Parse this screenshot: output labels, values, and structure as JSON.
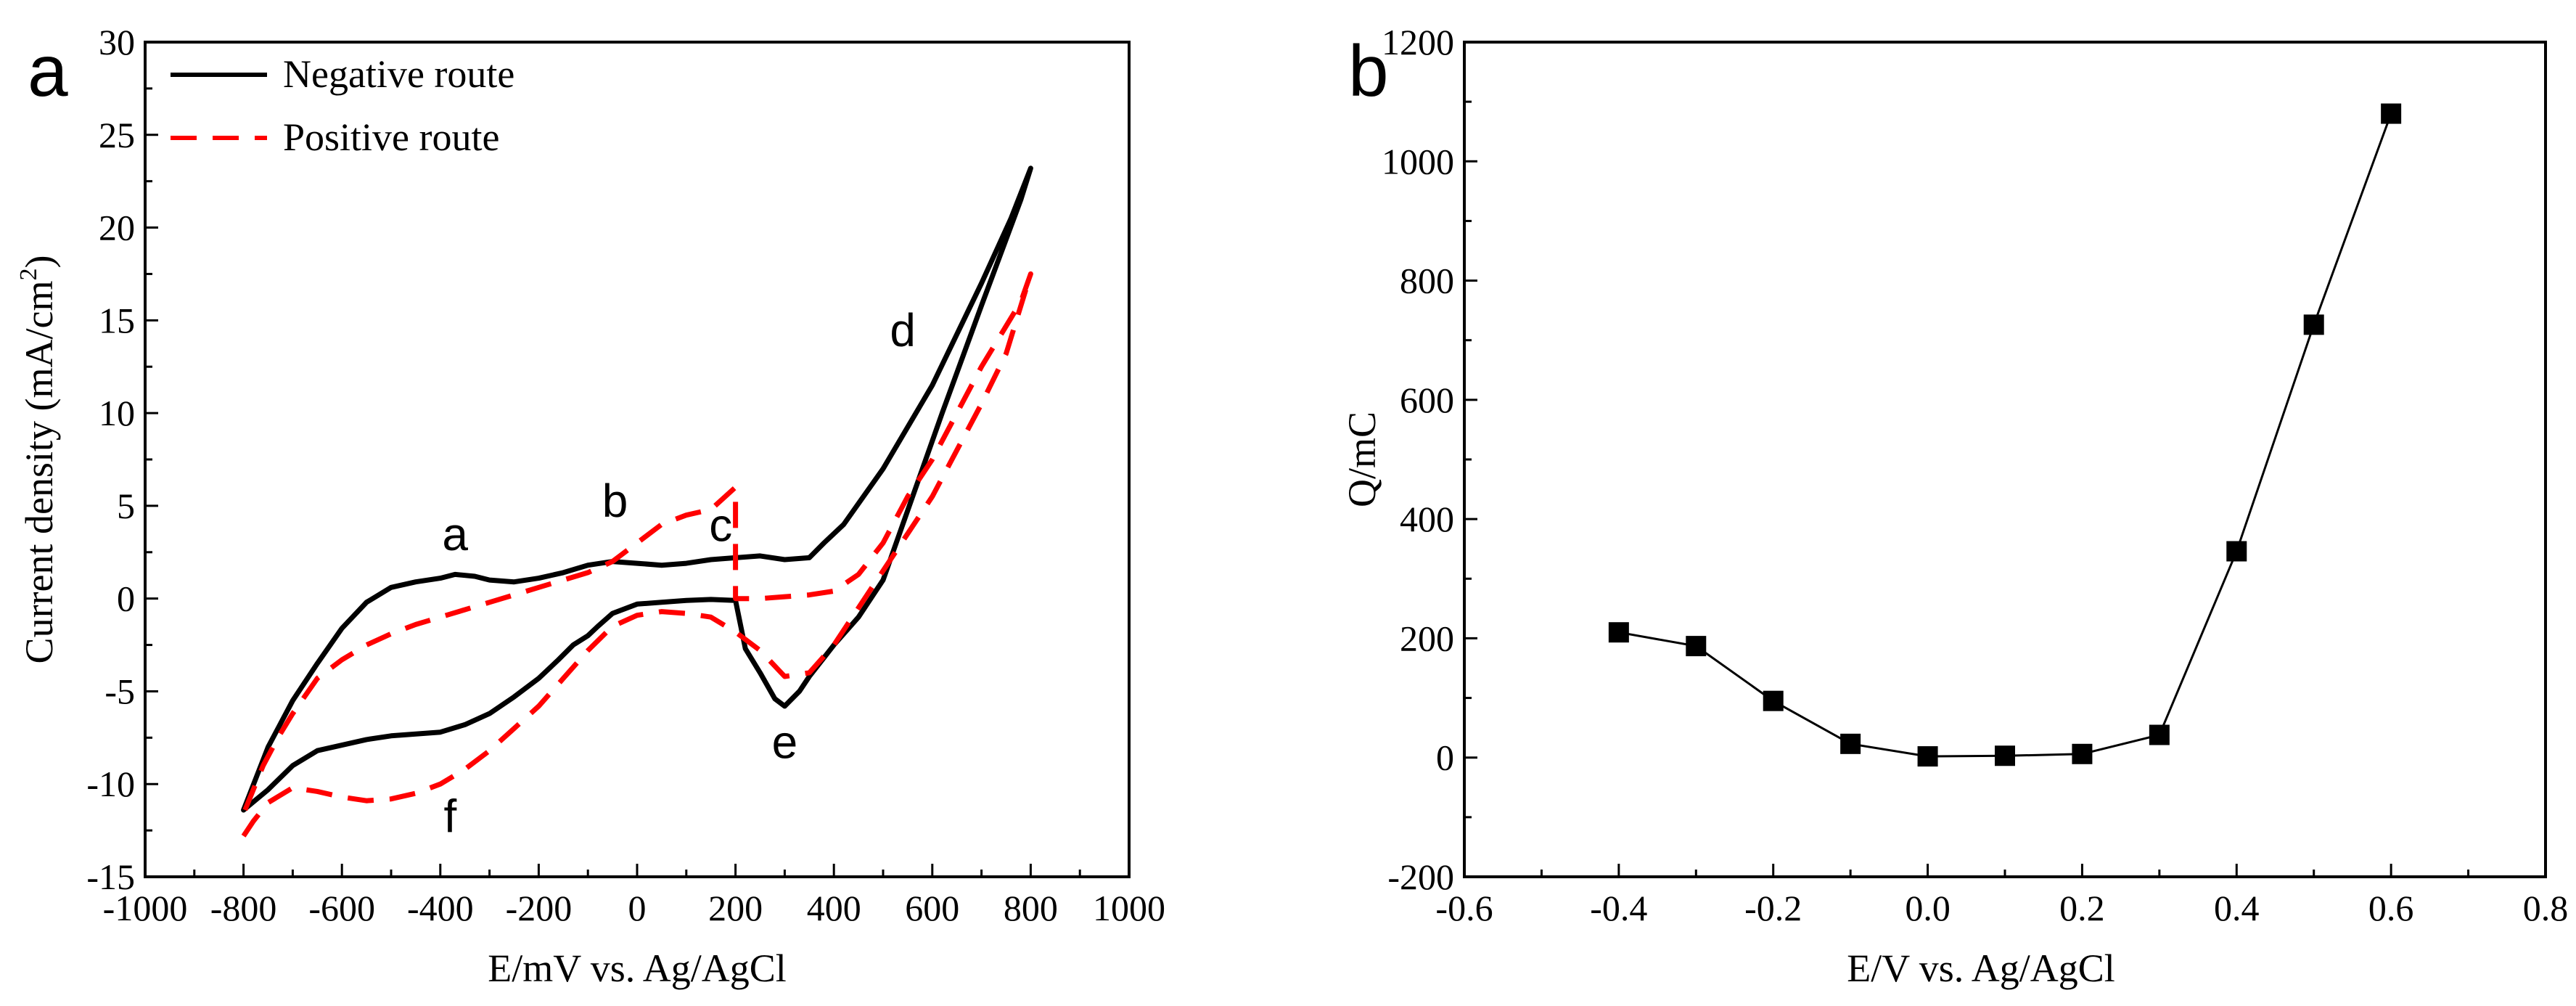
{
  "chart_data": [
    {
      "panel": "a",
      "type": "line",
      "title": "",
      "xlabel": "E/mV vs. Ag/AgCl",
      "ylabel_main": "Current density (mA/cm",
      "ylabel_sup": "2",
      "ylabel_end": ")",
      "xlim": [
        -1000,
        1000
      ],
      "ylim": [
        -15,
        30
      ],
      "xticks": [
        -1000,
        -800,
        -600,
        -400,
        -200,
        0,
        200,
        400,
        600,
        800,
        1000
      ],
      "yticks": [
        -15,
        -10,
        -5,
        0,
        5,
        10,
        15,
        20,
        25,
        30
      ],
      "grid": false,
      "legend_position": "top-left",
      "series": [
        {
          "name": "Negative route",
          "color": "#000000",
          "style": "solid",
          "points": [
            [
              -800,
              -11.4
            ],
            [
              -750,
              -8.0
            ],
            [
              -700,
              -5.5
            ],
            [
              -650,
              -3.5
            ],
            [
              -600,
              -1.6
            ],
            [
              -550,
              -0.2
            ],
            [
              -500,
              0.6
            ],
            [
              -450,
              0.9
            ],
            [
              -400,
              1.1
            ],
            [
              -370,
              1.3
            ],
            [
              -330,
              1.2
            ],
            [
              -300,
              1.0
            ],
            [
              -250,
              0.9
            ],
            [
              -200,
              1.1
            ],
            [
              -150,
              1.4
            ],
            [
              -100,
              1.8
            ],
            [
              -50,
              2.0
            ],
            [
              0,
              1.9
            ],
            [
              50,
              1.8
            ],
            [
              100,
              1.9
            ],
            [
              150,
              2.1
            ],
            [
              200,
              2.2
            ],
            [
              250,
              2.3
            ],
            [
              300,
              2.1
            ],
            [
              350,
              2.2
            ],
            [
              380,
              3.0
            ],
            [
              420,
              4.0
            ],
            [
              500,
              7.0
            ],
            [
              600,
              11.5
            ],
            [
              700,
              17.0
            ],
            [
              760,
              20.5
            ],
            [
              800,
              23.2
            ],
            [
              780,
              21.5
            ],
            [
              700,
              15.8
            ],
            [
              620,
              10.0
            ],
            [
              560,
              5.5
            ],
            [
              500,
              1.0
            ],
            [
              450,
              -1.0
            ],
            [
              400,
              -2.5
            ],
            [
              350,
              -4.2
            ],
            [
              330,
              -5.0
            ],
            [
              300,
              -5.8
            ],
            [
              280,
              -5.4
            ],
            [
              250,
              -4.0
            ],
            [
              220,
              -2.7
            ],
            [
              200,
              -0.1
            ],
            [
              150,
              -0.05
            ],
            [
              100,
              -0.1
            ],
            [
              50,
              -0.2
            ],
            [
              0,
              -0.3
            ],
            [
              -50,
              -0.8
            ],
            [
              -80,
              -1.5
            ],
            [
              -100,
              -2.0
            ],
            [
              -130,
              -2.5
            ],
            [
              -160,
              -3.3
            ],
            [
              -200,
              -4.3
            ],
            [
              -250,
              -5.3
            ],
            [
              -300,
              -6.2
            ],
            [
              -350,
              -6.8
            ],
            [
              -400,
              -7.2
            ],
            [
              -450,
              -7.3
            ],
            [
              -500,
              -7.4
            ],
            [
              -550,
              -7.6
            ],
            [
              -600,
              -7.9
            ],
            [
              -650,
              -8.2
            ],
            [
              -700,
              -9.0
            ],
            [
              -750,
              -10.3
            ],
            [
              -800,
              -11.4
            ]
          ]
        },
        {
          "name": "Positive route",
          "color": "#ff0000",
          "style": "dashed",
          "points": [
            [
              -800,
              -12.8
            ],
            [
              -780,
              -12.0
            ],
            [
              -750,
              -11.0
            ],
            [
              -700,
              -10.2
            ],
            [
              -650,
              -10.4
            ],
            [
              -600,
              -10.7
            ],
            [
              -550,
              -10.9
            ],
            [
              -500,
              -10.8
            ],
            [
              -450,
              -10.5
            ],
            [
              -400,
              -10.0
            ],
            [
              -350,
              -9.2
            ],
            [
              -300,
              -8.2
            ],
            [
              -250,
              -7.0
            ],
            [
              -200,
              -5.8
            ],
            [
              -150,
              -4.3
            ],
            [
              -100,
              -2.8
            ],
            [
              -50,
              -1.5
            ],
            [
              0,
              -0.9
            ],
            [
              50,
              -0.7
            ],
            [
              100,
              -0.8
            ],
            [
              150,
              -1.0
            ],
            [
              200,
              -1.8
            ],
            [
              250,
              -2.8
            ],
            [
              300,
              -4.2
            ],
            [
              350,
              -4.0
            ],
            [
              400,
              -2.5
            ],
            [
              450,
              -0.5
            ],
            [
              500,
              1.5
            ],
            [
              550,
              3.5
            ],
            [
              600,
              5.5
            ],
            [
              650,
              8.0
            ],
            [
              700,
              10.5
            ],
            [
              750,
              13.2
            ],
            [
              800,
              17.5
            ],
            [
              780,
              16.0
            ],
            [
              700,
              12.5
            ],
            [
              650,
              10.0
            ],
            [
              600,
              7.5
            ],
            [
              550,
              5.5
            ],
            [
              500,
              3.0
            ],
            [
              450,
              1.3
            ],
            [
              400,
              0.4
            ],
            [
              350,
              0.2
            ],
            [
              300,
              0.1
            ],
            [
              250,
              0.0
            ],
            [
              200,
              0.0
            ],
            [
              200,
              6.0
            ],
            [
              150,
              4.8
            ],
            [
              100,
              4.5
            ],
            [
              50,
              4.0
            ],
            [
              0,
              3.0
            ],
            [
              -50,
              2.0
            ],
            [
              -100,
              1.4
            ],
            [
              -150,
              1.0
            ],
            [
              -200,
              0.6
            ],
            [
              -250,
              0.2
            ],
            [
              -300,
              -0.2
            ],
            [
              -350,
              -0.6
            ],
            [
              -400,
              -1.0
            ],
            [
              -450,
              -1.4
            ],
            [
              -500,
              -1.9
            ],
            [
              -550,
              -2.5
            ],
            [
              -600,
              -3.3
            ],
            [
              -650,
              -4.3
            ],
            [
              -700,
              -6.2
            ],
            [
              -730,
              -7.5
            ],
            [
              -760,
              -9.0
            ],
            [
              -800,
              -11.6
            ]
          ]
        }
      ],
      "annotations": [
        {
          "text": "a",
          "x": -370,
          "y": 2.6
        },
        {
          "text": "b",
          "x": -45,
          "y": 4.4
        },
        {
          "text": "c",
          "x": 170,
          "y": 3.1
        },
        {
          "text": "d",
          "x": 540,
          "y": 13.6
        },
        {
          "text": "e",
          "x": 300,
          "y": -8.6
        },
        {
          "text": "f",
          "x": -380,
          "y": -12.6
        }
      ]
    },
    {
      "panel": "b",
      "type": "line",
      "title": "",
      "xlabel": "E/V vs. Ag/AgCl",
      "ylabel": "Q/mC",
      "xlim": [
        -0.6,
        0.8
      ],
      "ylim": [
        -200,
        1200
      ],
      "xticks": [
        -0.6,
        -0.4,
        -0.2,
        0.0,
        0.2,
        0.4,
        0.6,
        0.8
      ],
      "xtick_labels": [
        "-0.6",
        "-0.4",
        "-0.2",
        "0.0",
        "0.2",
        "0.4",
        "0.6",
        "0.8"
      ],
      "yticks": [
        -200,
        0,
        200,
        400,
        600,
        800,
        1000,
        1200
      ],
      "grid": false,
      "marker": "square",
      "x": [
        -0.4,
        -0.3,
        -0.2,
        -0.1,
        0.0,
        0.1,
        0.2,
        0.3,
        0.4,
        0.5,
        0.6
      ],
      "y": [
        210,
        187,
        95,
        23,
        2,
        3,
        6,
        38,
        346,
        726,
        1080
      ]
    }
  ]
}
